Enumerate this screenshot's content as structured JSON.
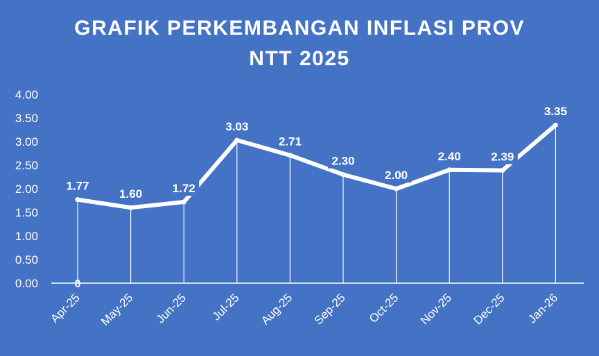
{
  "chart_data": {
    "type": "line",
    "title_line1": "GRAFIK PERKEMBANGAN INFLASI PROV",
    "title_line2": "NTT 2025",
    "categories": [
      "Apr-25",
      "May-25",
      "Jun-25",
      "Jul-25",
      "Aug-25",
      "Sep-25",
      "Oct-25",
      "Nov-25",
      "Dec-25",
      "Jan-26"
    ],
    "series": [
      {
        "values": [
          1.77,
          1.6,
          1.72,
          3.03,
          2.71,
          2.3,
          2.0,
          2.4,
          2.39,
          3.35
        ],
        "labels": [
          "1.77",
          "1.60",
          "1.72",
          "3.03",
          "2.71",
          "2.30",
          "2.00",
          "2.40",
          "2.39",
          "3.35"
        ]
      }
    ],
    "extra_label": "0",
    "ylim": [
      0,
      4
    ],
    "yticks": [
      "0.00",
      "0.50",
      "1.00",
      "1.50",
      "2.00",
      "2.50",
      "3.00",
      "3.50",
      "4.00"
    ],
    "xlabel": "",
    "ylabel": "",
    "grid": false,
    "drop_lines": true,
    "colors": {
      "background": "#4472c4",
      "line": "#ffffff",
      "text": "#ffffff"
    }
  }
}
